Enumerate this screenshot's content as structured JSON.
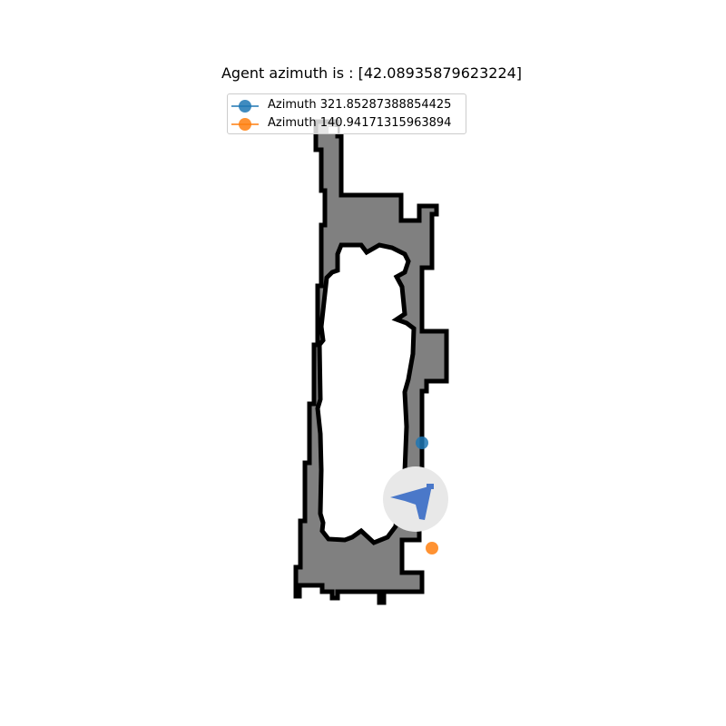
{
  "title": "Agent azimuth is : [42.08935879623224]",
  "legend": [
    {
      "label": "Azimuth 321.85287388854425",
      "color": "#1f77b4"
    },
    {
      "label": "Azimuth 140.94171315963894",
      "color": "#ff7f0e"
    }
  ],
  "colors": {
    "free_space": "#ffffff",
    "explored": "#808080",
    "obstacle": "#000000",
    "agent": "#4a78c9",
    "agent_halo": "#e8e8e8"
  },
  "icons": {
    "agent": "agent-arrow-icon"
  }
}
